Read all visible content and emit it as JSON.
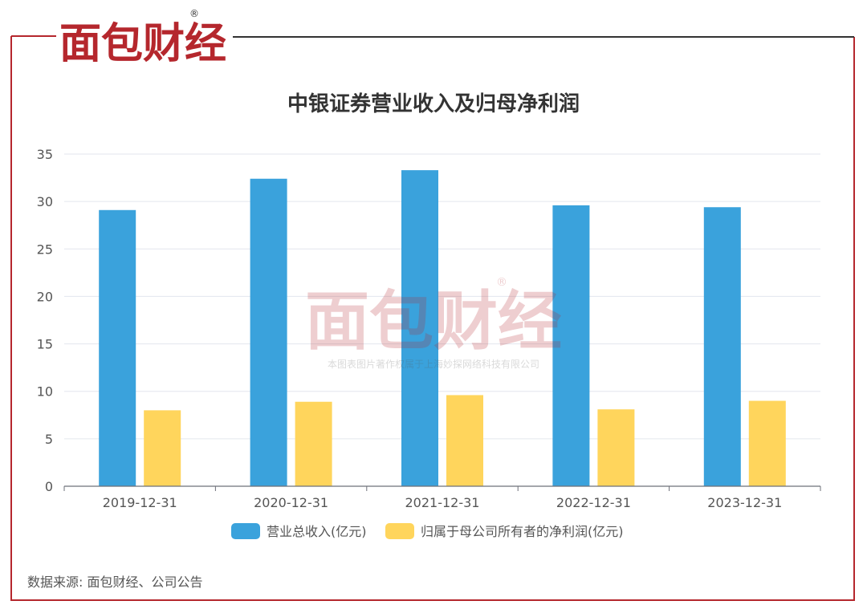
{
  "brand": {
    "logo_text": "面包财经",
    "registered_mark": "®",
    "watermark_text": "面包财经",
    "watermark_caption": "本图表图片著作权属于上海妙探网络科技有限公司"
  },
  "colors": {
    "frame_red": "#b5272d",
    "frame_dark": "#333333",
    "revenue_bar": "#3aa2dc",
    "profit_bar": "#ffd55c",
    "grid": "#e3e6ee",
    "axis_text": "#555555",
    "title_text": "#333333"
  },
  "source_note": "数据来源: 面包财经、公司公告",
  "chart_data": {
    "type": "bar",
    "title": "中银证券营业收入及归母净利润",
    "categories": [
      "2019-12-31",
      "2020-12-31",
      "2021-12-31",
      "2022-12-31",
      "2023-12-31"
    ],
    "series": [
      {
        "name": "营业总收入(亿元)",
        "color": "#3aa2dc",
        "values": [
          29.1,
          32.4,
          33.3,
          29.6,
          29.4
        ]
      },
      {
        "name": "归属于母公司所有者的净利润(亿元)",
        "color": "#ffd55c",
        "values": [
          8.0,
          8.9,
          9.6,
          8.1,
          9.0
        ]
      }
    ],
    "yticks": [
      "0",
      "5",
      "10",
      "15",
      "20",
      "25",
      "30",
      "35"
    ],
    "ylim": [
      0,
      35
    ],
    "grid": true,
    "legend_position": "bottom-center"
  }
}
